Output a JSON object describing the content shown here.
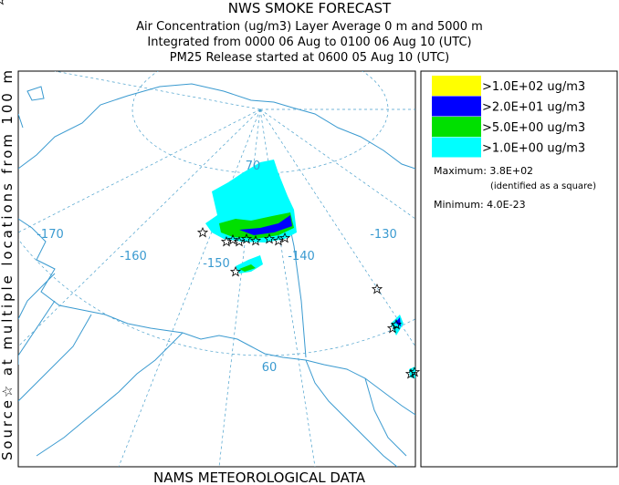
{
  "title_lines": [
    "NWS SMOKE FORECAST",
    "Air Concentration (ug/m3) Layer Average     0 m and  5000 m",
    "Integrated from 0000 06 Aug to 0100 06 Aug 10 (UTC)",
    "PM25 Release started at 0600 05 Aug 10 (UTC)"
  ],
  "side_label": "Source☆ at multiple locations    from   100 m",
  "legend": {
    "items": [
      {
        "label": ">1.0E+02 ug/m3",
        "color": "#ffff00"
      },
      {
        "label": ">2.0E+01 ug/m3",
        "color": "#0000ff"
      },
      {
        "label": ">5.0E+00 ug/m3",
        "color": "#00e000"
      },
      {
        "label": ">1.0E+00 ug/m3",
        "color": "#00ffff"
      }
    ],
    "maximum": "Maximum: 3.8E+02",
    "maximum_note": "(identified as a square)",
    "minimum": "Minimum: 4.0E-23"
  },
  "map": {
    "lon_labels": [
      "-170",
      "-160",
      "-150",
      "-140",
      "-130"
    ],
    "lat_labels": [
      "70",
      "60"
    ]
  },
  "footer": "NAMS METEOROLOGICAL DATA"
}
